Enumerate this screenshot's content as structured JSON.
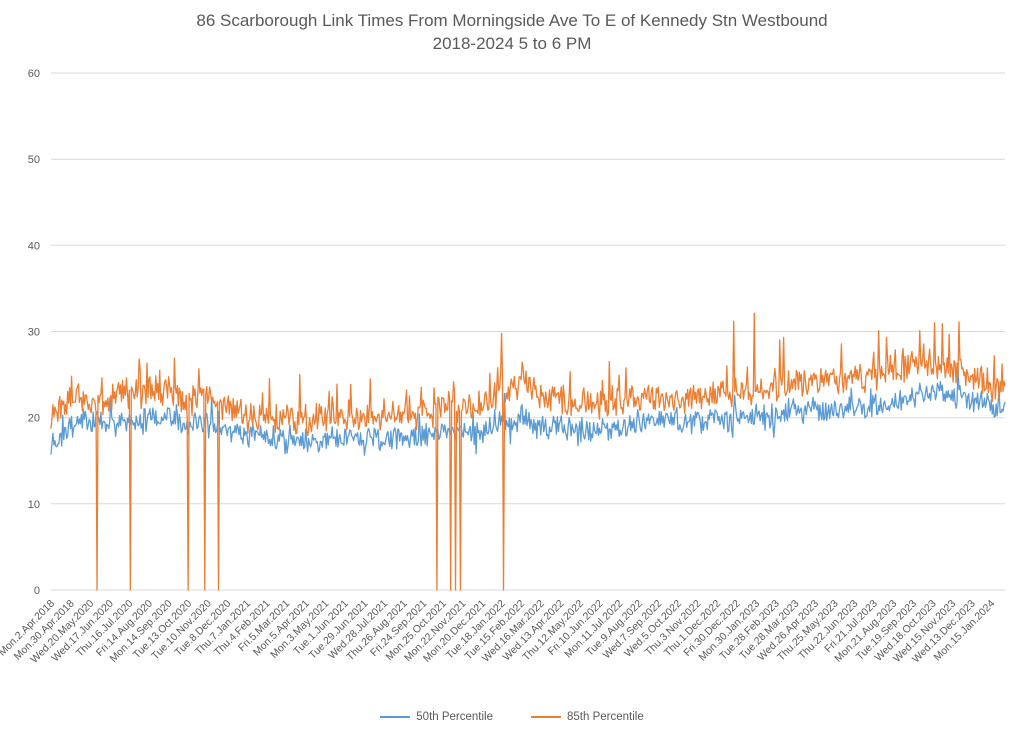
{
  "chart_data": {
    "type": "line",
    "title": "86 Scarborough Link Times From Morningside Ave To E of Kennedy Stn Westbound",
    "subtitle": "2018-2024 5 to 6 PM",
    "xlabel": "",
    "ylabel": "",
    "ylim": [
      0,
      60
    ],
    "yticks": [
      0,
      10,
      20,
      30,
      40,
      50,
      60
    ],
    "grid": "horizontal",
    "gridline_color": "#d9d9d9",
    "text_color": "#595959",
    "legend_position": "bottom",
    "points_per_label": 20,
    "tail_points": 15,
    "noise_seed": 7,
    "x_tick_labels": [
      "Mon.2.Apr.2018",
      "Mon.30.Apr.2018",
      "Wed.20.May.2020",
      "Wed.17.Jun.2020",
      "Thu.16.Jul.2020",
      "Fri.14.Aug.2020",
      "Mon.14.Sep.2020",
      "Tue.13.Oct.2020",
      "Tue.10.Nov.2020",
      "Tue.8.Dec.2020",
      "Thu.7.Jan.2021",
      "Thu.4.Feb.2021",
      "Fri.5.Mar.2021",
      "Mon.5.Apr.2021",
      "Mon.3.May.2021",
      "Tue.1.Jun.2021",
      "Tue.29.Jun.2021",
      "Wed.28.Jul.2021",
      "Thu.26.Aug.2021",
      "Fri.24.Sep.2021",
      "Mon.25.Oct.2021",
      "Mon.22.Nov.2021",
      "Mon.20.Dec.2021",
      "Tue.18.Jan.2022",
      "Tue.15.Feb.2022",
      "Wed.16.Mar.2022",
      "Wed.13.Apr.2022",
      "Thu.12.May.2022",
      "Fri.10.Jun.2022",
      "Mon.11.Jul.2022",
      "Tue.9.Aug.2022",
      "Wed.7.Sep.2022",
      "Wed.5.Oct.2022",
      "Thu.3.Nov.2022",
      "Thu.1.Dec.2022",
      "Fri.30.Dec.2022",
      "Mon.30.Jan.2023",
      "Tue.28.Feb.2023",
      "Tue.28.Mar.2023",
      "Wed.26.Apr.2023",
      "Thu.25.May.2023",
      "Thu.22.Jun.2023",
      "Fri.21.Jul.2023",
      "Mon.21.Aug.2023",
      "Tue.19.Sep.2023",
      "Wed.18.Oct.2023",
      "Wed.15.Nov.2023",
      "Wed.13.Dec.2023",
      "Mon.15.Jan.2024"
    ],
    "series": [
      {
        "name": "50th Percentile",
        "color": "#5b9bd5",
        "seed": 101,
        "noise": {
          "amp": 1.5,
          "burst_up_prob": 0.03,
          "burst_up_max": 2.2,
          "burst_down_prob": 0.03,
          "burst_down_max": 2.2
        },
        "anchors": [
          17.2,
          18.8,
          19.6,
          19.2,
          19.5,
          20.0,
          19.8,
          19.2,
          19.6,
          18.4,
          17.8,
          17.6,
          17.4,
          17.2,
          17.5,
          17.6,
          17.4,
          17.6,
          17.8,
          18.0,
          18.2,
          18.6,
          18.4,
          19.5,
          19.6,
          19.0,
          18.6,
          18.2,
          18.5,
          19.0,
          19.4,
          19.8,
          19.6,
          19.6,
          19.8,
          20.0,
          20.2,
          20.4,
          20.8,
          20.8,
          21.0,
          21.2,
          21.4,
          21.8,
          22.4,
          23.0,
          22.4,
          22.0,
          21.2
        ],
        "point_overrides": [
          [
            239,
            15.8
          ],
          [
            463,
            22.8
          ],
          [
            887,
            24.0
          ]
        ]
      },
      {
        "name": "85th Percentile",
        "color": "#ed7d31",
        "seed": 202,
        "noise": {
          "amp": 1.9,
          "burst_up_prob": 0.05,
          "burst_up_max": 4.2,
          "burst_down_prob": 0.0,
          "burst_down_max": 0
        },
        "anchors": [
          20.6,
          22.0,
          21.6,
          22.0,
          22.4,
          23.2,
          22.6,
          22.0,
          22.4,
          20.8,
          19.8,
          19.8,
          20.0,
          19.6,
          20.0,
          20.2,
          19.8,
          20.0,
          20.2,
          20.6,
          21.0,
          21.4,
          21.0,
          23.5,
          23.8,
          22.6,
          22.0,
          21.4,
          21.6,
          22.0,
          22.2,
          22.6,
          22.4,
          22.4,
          22.8,
          23.2,
          23.4,
          23.6,
          24.0,
          24.0,
          24.4,
          24.6,
          25.0,
          25.8,
          26.2,
          26.6,
          25.6,
          25.0,
          23.6
        ],
        "point_overrides": [
          [
            21,
            24.8
          ],
          [
            47,
            0
          ],
          [
            81,
            0
          ],
          [
            111,
            25.5
          ],
          [
            140,
            0
          ],
          [
            157,
            0
          ],
          [
            171,
            0
          ],
          [
            254,
            25.0
          ],
          [
            326,
            24.5
          ],
          [
            394,
            0
          ],
          [
            408,
            0
          ],
          [
            413,
            0
          ],
          [
            418,
            0
          ],
          [
            460,
            29.8
          ],
          [
            462,
            0
          ],
          [
            697,
            31.2
          ],
          [
            718,
            32.1
          ],
          [
            748,
            29.3
          ],
          [
            845,
            30.1
          ],
          [
            853,
            29.3
          ],
          [
            917,
            29.7
          ]
        ]
      }
    ]
  }
}
